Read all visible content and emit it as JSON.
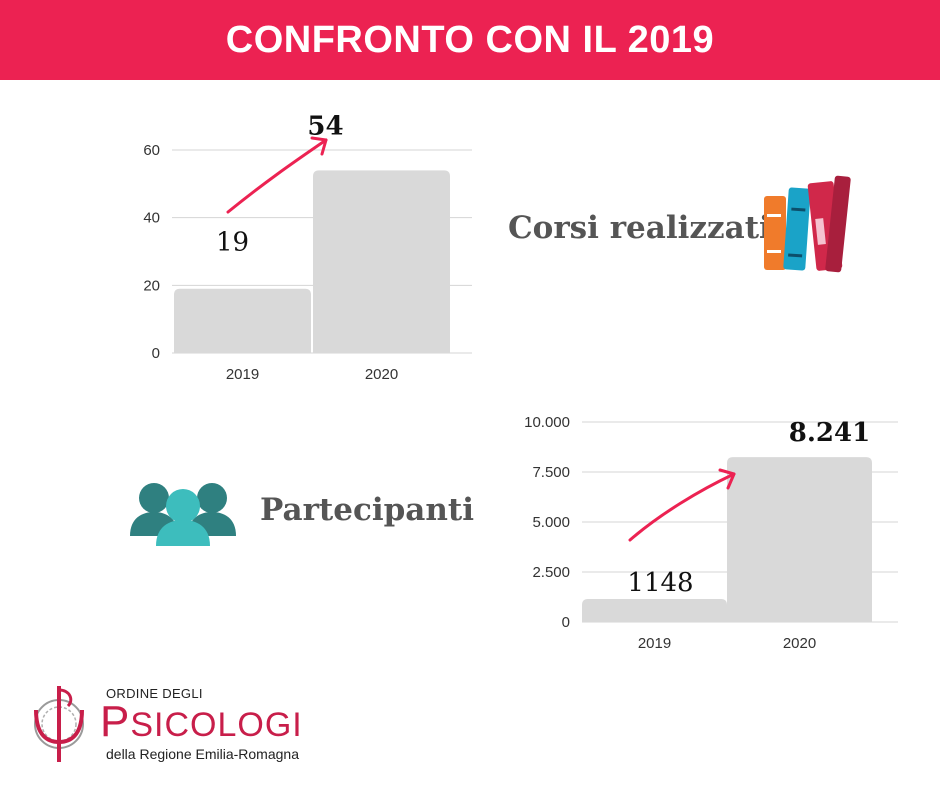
{
  "header": {
    "title": "CONFRONTO CON IL 2019",
    "color": "#ec2252"
  },
  "chart_data": [
    {
      "type": "bar",
      "categories": [
        "2019",
        "2020"
      ],
      "values": [
        19,
        54
      ],
      "value_labels": [
        "19",
        "54"
      ],
      "yticks": [
        "0",
        "20",
        "40",
        "60"
      ],
      "ytick_values": [
        0,
        20,
        40,
        60
      ],
      "ylim": [
        0,
        65
      ],
      "grid": true,
      "bar_color": "#d9d9d9",
      "arrow_color": "#ec2252",
      "caption": "Corsi realizzati",
      "caption_icon": "books-icon"
    },
    {
      "type": "bar",
      "categories": [
        "2019",
        "2020"
      ],
      "values": [
        1148,
        8241
      ],
      "value_labels": [
        "1148",
        "8.241"
      ],
      "yticks": [
        "0",
        "2.500",
        "5.000",
        "7.500",
        "10.000"
      ],
      "ytick_values": [
        0,
        2500,
        5000,
        7500,
        10000
      ],
      "ylim": [
        0,
        10000
      ],
      "grid": true,
      "bar_color": "#d9d9d9",
      "arrow_color": "#ec2252",
      "caption": "Partecipanti",
      "caption_icon": "people-group-icon"
    }
  ],
  "logo": {
    "line1": "ORDINE DEGLI",
    "line2": "PSICOLOGI",
    "line3": "della Regione Emilia-Romagna",
    "brand_color": "#c81e4a"
  }
}
